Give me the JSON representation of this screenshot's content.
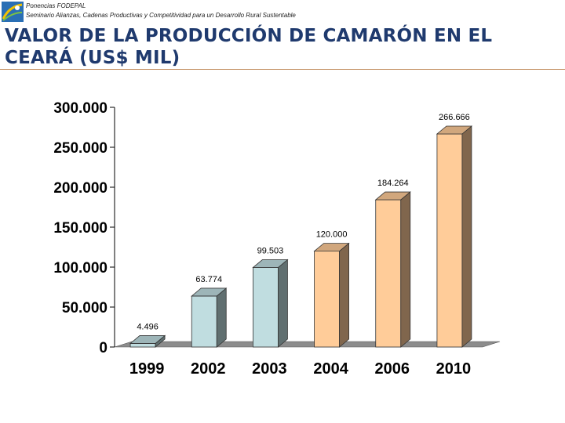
{
  "header": {
    "line1": "Ponencias FODEPAL",
    "line2": "Seminario Alianzas, Cadenas Productivas y Competitividad para un Desarrollo Rural Sustentable"
  },
  "title": "VALOR DE LA PRODUCCIÓN DE CAMARÓN EN EL CEARÁ (US$ MIL)",
  "colors": {
    "title": "#1f3a6e",
    "bar_actual": "#c0dde0",
    "bar_projected": "#ffcc99",
    "floor": "#8c8c8c"
  },
  "chart_data": {
    "type": "bar",
    "title": "VALOR DE LA PRODUCCIÓN DE CAMARÓN EN EL CEARÁ (US$ MIL)",
    "xlabel": "",
    "ylabel": "",
    "categories": [
      "1999",
      "2002",
      "2003",
      "2004",
      "2006",
      "2010"
    ],
    "values": [
      4496,
      63774,
      99503,
      120000,
      184264,
      266666
    ],
    "value_labels": [
      "4.496",
      "63.774",
      "99.503",
      "120.000",
      "184.264",
      "266.666"
    ],
    "bar_kind": [
      "actual",
      "actual",
      "actual",
      "projected",
      "projected",
      "projected"
    ],
    "ylim": [
      0,
      300000
    ],
    "yticks": [
      0,
      50000,
      100000,
      150000,
      200000,
      250000,
      300000
    ],
    "ytick_labels": [
      "0",
      "50.000",
      "100.000",
      "150.000",
      "200.000",
      "250.000",
      "300.000"
    ],
    "grid": false,
    "style": "3d-column"
  }
}
